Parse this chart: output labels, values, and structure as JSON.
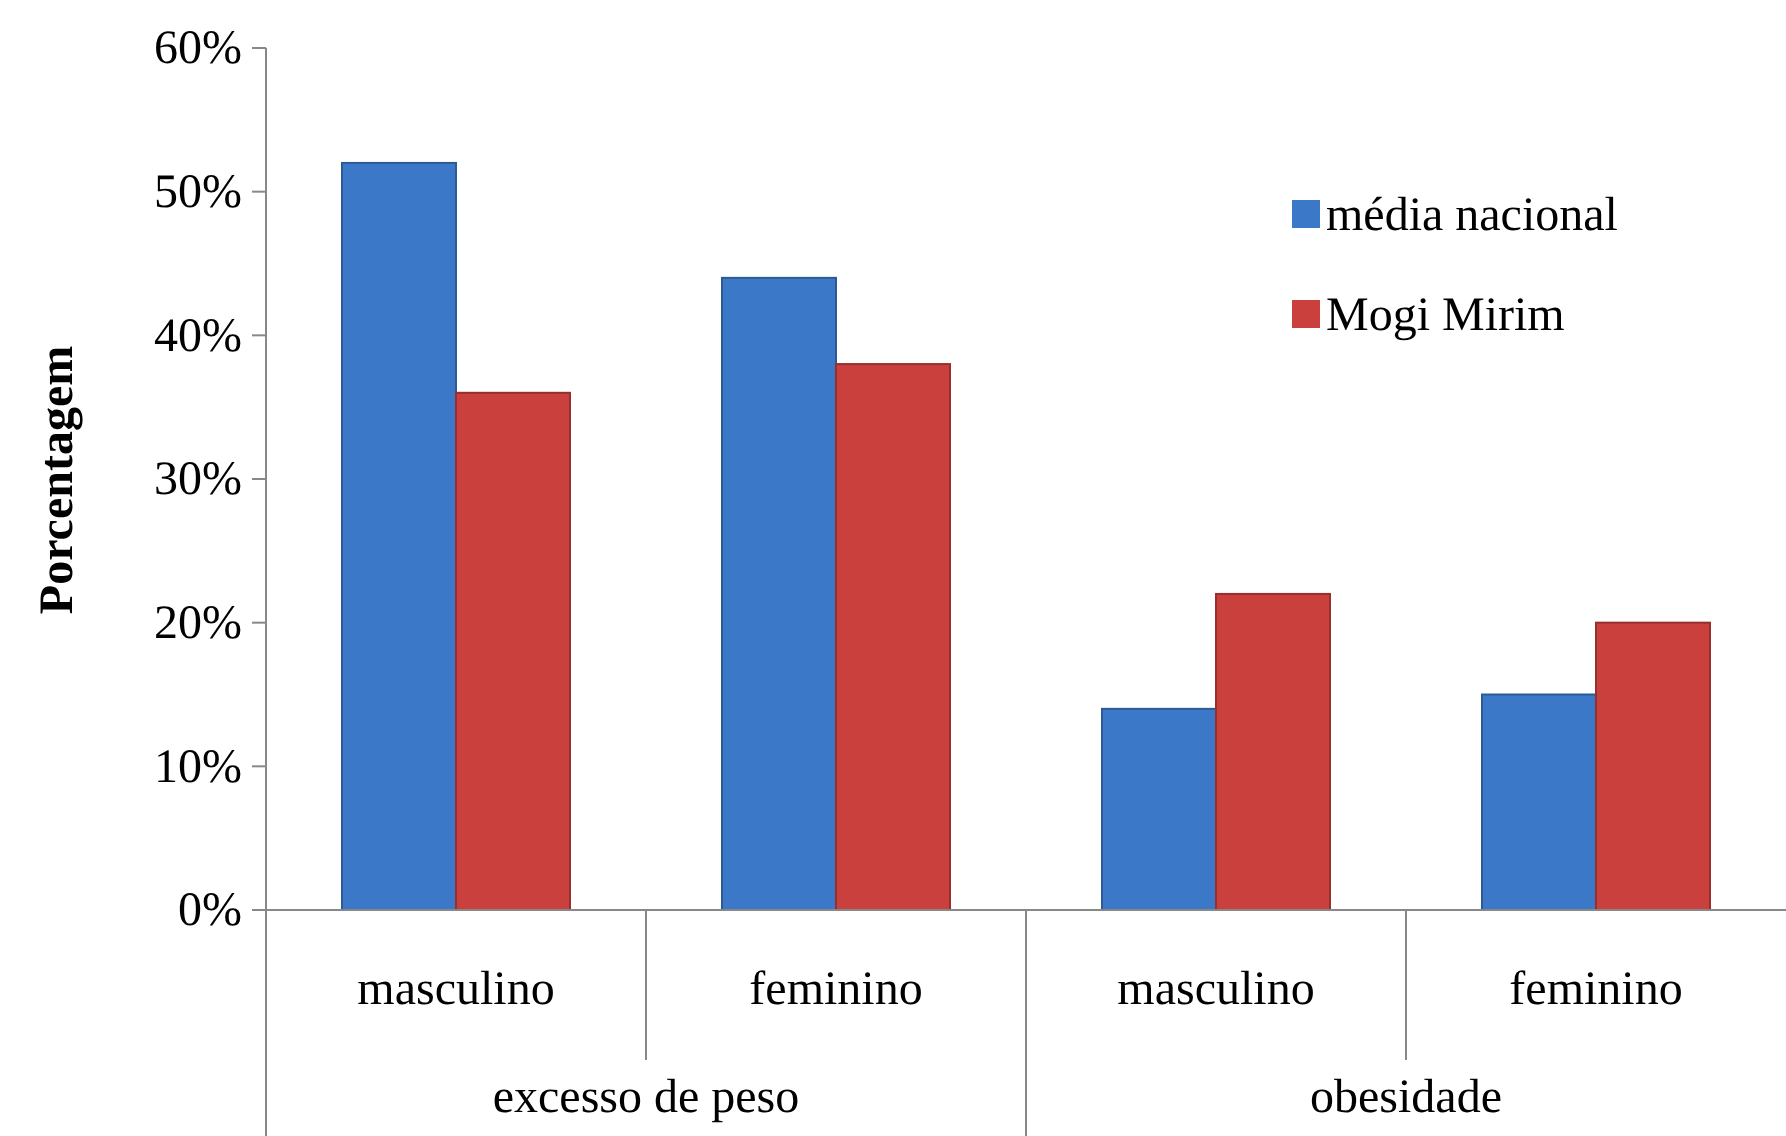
{
  "chart_data": {
    "type": "bar",
    "ylabel": "Porcentagem",
    "categories": [
      "masculino",
      "feminino",
      "masculino",
      "feminino"
    ],
    "annotations": [
      "excesso de peso",
      "obesidade"
    ],
    "series": [
      {
        "name": "média nacional",
        "color": "#3b78c8",
        "values": [
          52,
          44,
          14,
          15
        ]
      },
      {
        "name": "Mogi Mirim",
        "color": "#c9403c",
        "values": [
          36,
          38,
          22,
          20
        ]
      }
    ],
    "ylim": [
      0,
      60
    ],
    "yticks": [
      {
        "value": 0,
        "label": "0%"
      },
      {
        "value": 10,
        "label": "10%"
      },
      {
        "value": 20,
        "label": "20%"
      },
      {
        "value": 30,
        "label": "30%"
      },
      {
        "value": 40,
        "label": "40%"
      },
      {
        "value": 50,
        "label": "50%"
      },
      {
        "value": 60,
        "label": "60%"
      }
    ],
    "grid": false,
    "legend": "top right"
  }
}
